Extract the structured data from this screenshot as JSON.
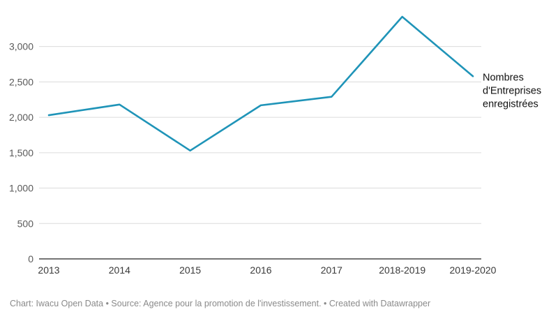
{
  "chart_data": {
    "type": "line",
    "categories": [
      "2013",
      "2014",
      "2015",
      "2016",
      "2017",
      "2018-2019",
      "2019-2020"
    ],
    "series": [
      {
        "name": "Nombres d'Entreprises enregistrées",
        "label_lines": [
          "Nombres",
          "d'Entreprises",
          "enregistrées"
        ],
        "values": [
          2030,
          2180,
          1530,
          2170,
          2290,
          3420,
          2580
        ],
        "color": "#1f94b8"
      }
    ],
    "yticks": [
      0,
      500,
      1000,
      1500,
      2000,
      2500,
      3000
    ],
    "ytick_labels": [
      "0",
      "500",
      "1,000",
      "1,500",
      "2,000",
      "2,500",
      "3,000"
    ],
    "ylim": [
      0,
      3450
    ],
    "grid": true,
    "legend": "direct label at line end (right)",
    "footer": "Chart: Iwacu Open Data • Source: Agence pour la promotion de l'investissement. • Created with Datawrapper"
  }
}
